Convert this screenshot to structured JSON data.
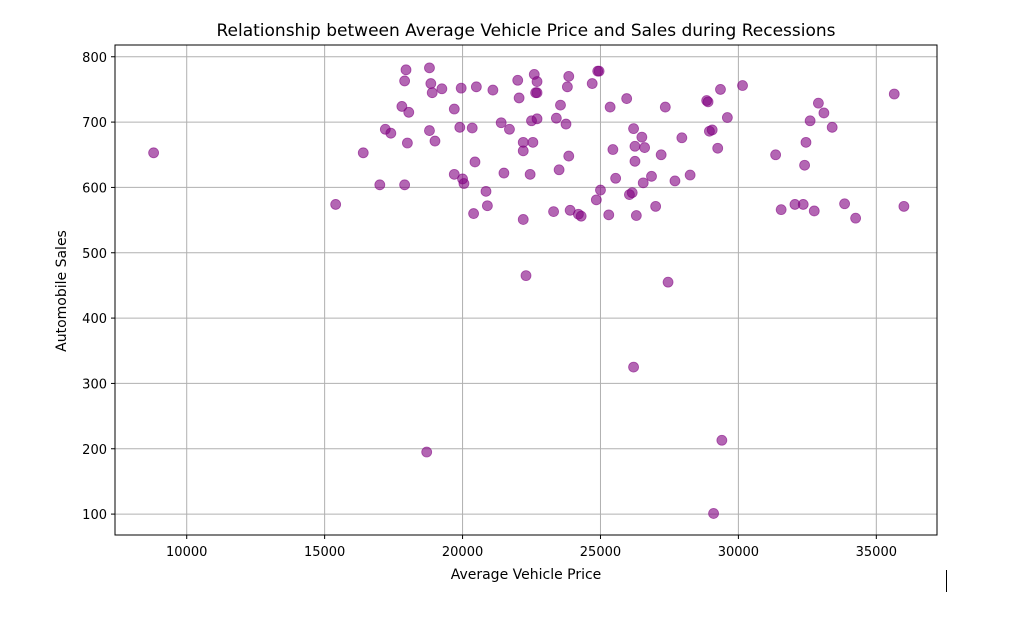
{
  "chart_data": {
    "type": "scatter",
    "title": "Relationship between Average Vehicle Price and Sales during Recessions",
    "xlabel": "Average Vehicle Price",
    "ylabel": "Automobile Sales",
    "xlim": [
      7400,
      37200
    ],
    "ylim": [
      68,
      818
    ],
    "xticks": [
      10000,
      15000,
      20000,
      25000,
      30000,
      35000
    ],
    "yticks": [
      100,
      200,
      300,
      400,
      500,
      600,
      700,
      800
    ],
    "grid": true,
    "marker_color": "#800080",
    "marker_alpha": 0.6,
    "points": [
      [
        8800,
        653
      ],
      [
        15400,
        574
      ],
      [
        16400,
        653
      ],
      [
        17000,
        604
      ],
      [
        17200,
        689
      ],
      [
        17400,
        683
      ],
      [
        17800,
        724
      ],
      [
        17900,
        604
      ],
      [
        17900,
        763
      ],
      [
        17950,
        780
      ],
      [
        18000,
        668
      ],
      [
        18050,
        715
      ],
      [
        18700,
        195
      ],
      [
        18800,
        687
      ],
      [
        18800,
        783
      ],
      [
        18850,
        759
      ],
      [
        18900,
        745
      ],
      [
        19000,
        671
      ],
      [
        19250,
        751
      ],
      [
        19700,
        720
      ],
      [
        19700,
        620
      ],
      [
        19900,
        692
      ],
      [
        19950,
        752
      ],
      [
        20000,
        613
      ],
      [
        20050,
        606
      ],
      [
        20350,
        691
      ],
      [
        20400,
        560
      ],
      [
        20450,
        639
      ],
      [
        20500,
        754
      ],
      [
        20850,
        594
      ],
      [
        20900,
        572
      ],
      [
        21100,
        749
      ],
      [
        21400,
        699
      ],
      [
        21500,
        622
      ],
      [
        21700,
        689
      ],
      [
        22000,
        764
      ],
      [
        22050,
        737
      ],
      [
        22200,
        551
      ],
      [
        22200,
        669
      ],
      [
        22200,
        656
      ],
      [
        22300,
        465
      ],
      [
        22450,
        620
      ],
      [
        22500,
        702
      ],
      [
        22550,
        669
      ],
      [
        22600,
        773
      ],
      [
        22650,
        745
      ],
      [
        22700,
        745
      ],
      [
        22700,
        762
      ],
      [
        22700,
        705
      ],
      [
        23300,
        563
      ],
      [
        23400,
        706
      ],
      [
        23500,
        627
      ],
      [
        23550,
        726
      ],
      [
        23750,
        697
      ],
      [
        23800,
        754
      ],
      [
        23850,
        770
      ],
      [
        23850,
        648
      ],
      [
        23900,
        565
      ],
      [
        24200,
        559
      ],
      [
        24300,
        556
      ],
      [
        24700,
        759
      ],
      [
        24850,
        581
      ],
      [
        24900,
        778
      ],
      [
        24950,
        778
      ],
      [
        25000,
        596
      ],
      [
        25300,
        558
      ],
      [
        25350,
        723
      ],
      [
        25450,
        658
      ],
      [
        25550,
        614
      ],
      [
        25950,
        736
      ],
      [
        26050,
        589
      ],
      [
        26150,
        592
      ],
      [
        26200,
        325
      ],
      [
        26200,
        690
      ],
      [
        26250,
        640
      ],
      [
        26250,
        663
      ],
      [
        26300,
        557
      ],
      [
        26500,
        677
      ],
      [
        26550,
        607
      ],
      [
        26600,
        661
      ],
      [
        26850,
        617
      ],
      [
        27000,
        571
      ],
      [
        27200,
        650
      ],
      [
        27350,
        723
      ],
      [
        27450,
        455
      ],
      [
        27700,
        610
      ],
      [
        27950,
        676
      ],
      [
        28250,
        619
      ],
      [
        28850,
        733
      ],
      [
        28900,
        731
      ],
      [
        28950,
        686
      ],
      [
        29050,
        688
      ],
      [
        29100,
        101
      ],
      [
        29250,
        660
      ],
      [
        29350,
        750
      ],
      [
        29400,
        213
      ],
      [
        29600,
        707
      ],
      [
        30150,
        756
      ],
      [
        31350,
        650
      ],
      [
        31550,
        566
      ],
      [
        32050,
        574
      ],
      [
        32350,
        574
      ],
      [
        32400,
        634
      ],
      [
        32450,
        669
      ],
      [
        32600,
        702
      ],
      [
        32750,
        564
      ],
      [
        32900,
        729
      ],
      [
        33100,
        714
      ],
      [
        33400,
        692
      ],
      [
        33850,
        575
      ],
      [
        34250,
        553
      ],
      [
        35650,
        743
      ],
      [
        36000,
        571
      ]
    ]
  }
}
